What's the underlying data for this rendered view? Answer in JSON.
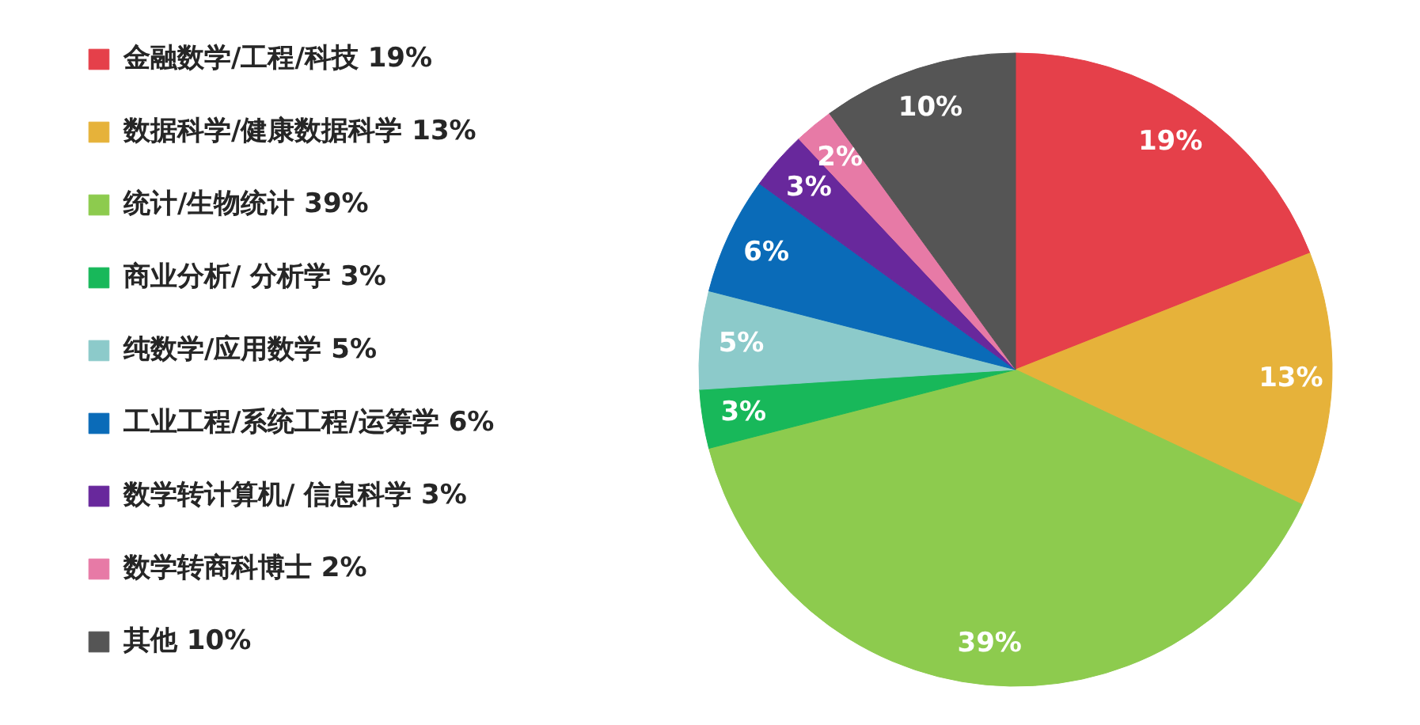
{
  "chart_data": {
    "type": "pie",
    "categories": [
      "金融数学/工程/科技 19%",
      "数据科学/健康数据科学 13%",
      "统计/生物统计 39%",
      "商业分析/ 分析学 3%",
      "纯数学/应用数学 5%",
      "工业工程/系统工程/运筹学 6%",
      "数学转计算机/ 信息科学 3%",
      "数学转商科博士 2%",
      "其他 10%"
    ],
    "values": [
      19,
      13,
      39,
      3,
      5,
      6,
      3,
      2,
      10
    ],
    "colors": [
      "#e5404a",
      "#e6b23a",
      "#8dcb4e",
      "#18b85a",
      "#8ccaca",
      "#0a6bb8",
      "#68289c",
      "#e77aa6",
      "#555555"
    ],
    "value_labels": [
      "19%",
      "13%",
      "39%",
      "3%",
      "5%",
      "6%",
      "3%",
      "2%",
      "10%"
    ],
    "legend": "left"
  }
}
